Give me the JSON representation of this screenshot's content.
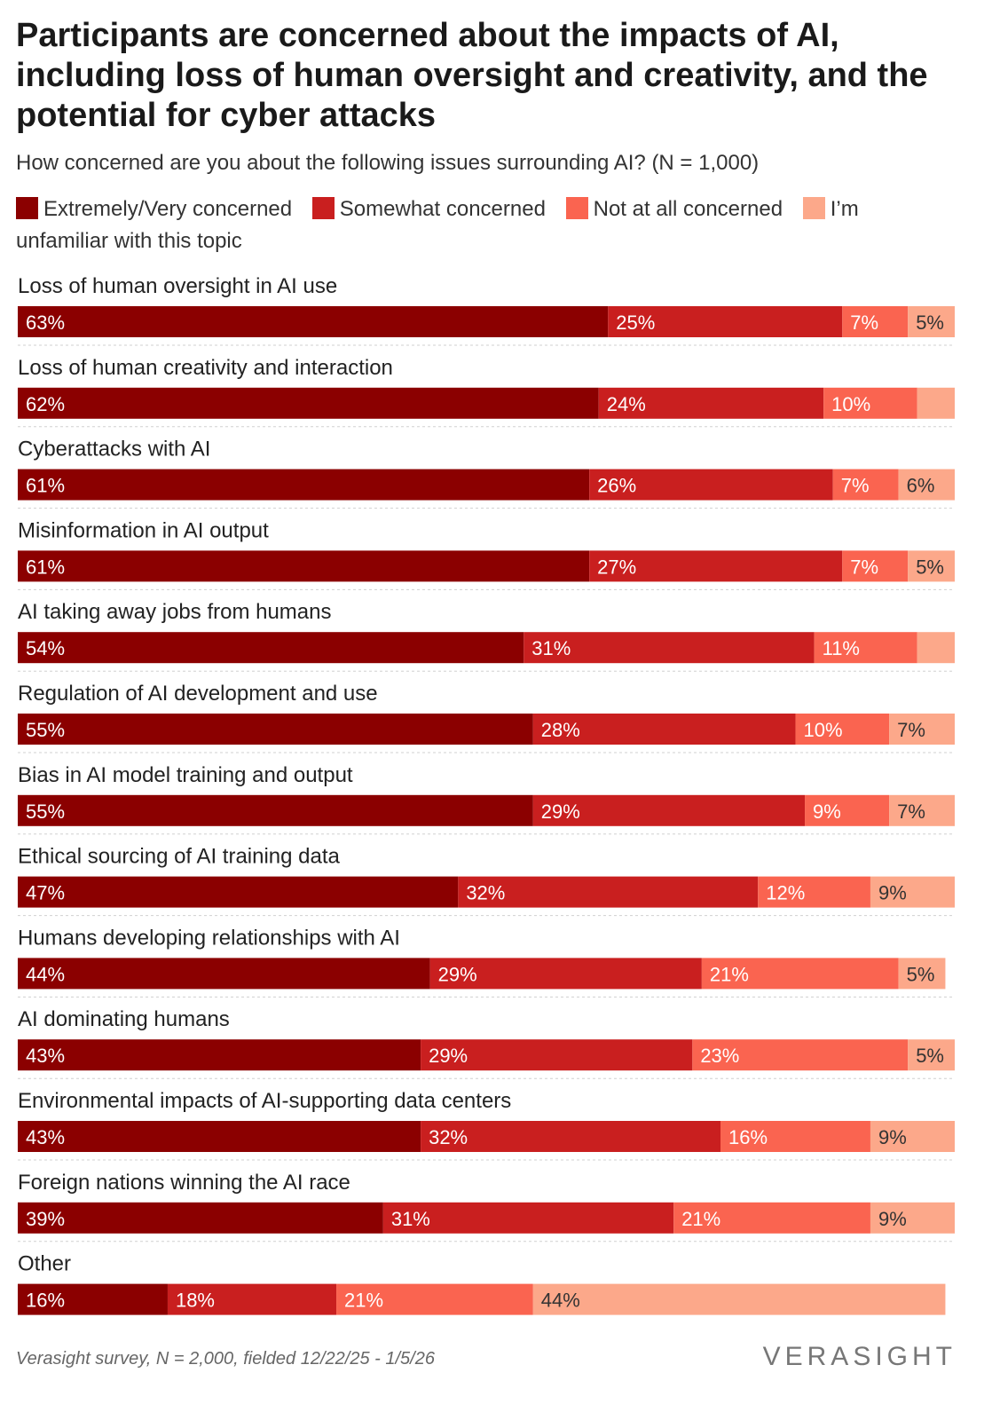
{
  "title": "Participants are concerned about the impacts of AI, including loss of human oversight and creativity, and the potential for cyber attacks",
  "subtitle": "How concerned are you about the following issues surrounding AI? (N = 1,000)",
  "source": "Verasight survey, N = 2,000, fielded 12/22/25 - 1/5/26",
  "brand": "VERASIGHT",
  "colors": {
    "extremely": "#8b0000",
    "somewhat": "#c91f1f",
    "not_at_all": "#fa6450",
    "unfamiliar": "#fca88a",
    "separator": "#d0d0d0"
  },
  "chart_data": {
    "type": "bar",
    "orientation": "horizontal",
    "stacked": true,
    "title": "Participants are concerned about the impacts of AI, including loss of human oversight and creativity, and the potential for cyber attacks",
    "subtitle": "How concerned are you about the following issues surrounding AI? (N = 1,000)",
    "xlim": [
      0,
      100
    ],
    "unit": "%",
    "legend_position": "top",
    "categories": [
      "Loss of human oversight in AI use",
      "Loss of human creativity and interaction",
      "Cyberattacks with AI",
      "Misinformation in AI output",
      "AI taking away jobs from humans",
      "Regulation of AI development and use",
      "Bias in AI model training and output",
      "Ethical sourcing of AI training data",
      "Humans developing relationships with AI",
      "AI dominating humans",
      "Environmental impacts of AI-supporting data centers",
      "Foreign nations winning the AI race",
      "Other"
    ],
    "series": [
      {
        "name": "Extremely/Very concerned",
        "color_key": "extremely",
        "text_color": "#ffffff",
        "values": [
          63,
          62,
          61,
          61,
          54,
          55,
          55,
          47,
          44,
          43,
          43,
          39,
          16
        ],
        "labels": [
          "63%",
          "62%",
          "61%",
          "61%",
          "54%",
          "55%",
          "55%",
          "47%",
          "44%",
          "43%",
          "43%",
          "39%",
          "16%"
        ]
      },
      {
        "name": "Somewhat concerned",
        "color_key": "somewhat",
        "text_color": "#ffffff",
        "values": [
          25,
          24,
          26,
          27,
          31,
          28,
          29,
          32,
          29,
          29,
          32,
          31,
          18
        ],
        "labels": [
          "25%",
          "24%",
          "26%",
          "27%",
          "31%",
          "28%",
          "29%",
          "32%",
          "29%",
          "29%",
          "32%",
          "31%",
          "18%"
        ]
      },
      {
        "name": "Not at all concerned",
        "color_key": "not_at_all",
        "text_color": "#ffffff",
        "values": [
          7,
          10,
          7,
          7,
          11,
          10,
          9,
          12,
          21,
          23,
          16,
          21,
          21
        ],
        "labels": [
          "7%",
          "10%",
          "7%",
          "7%",
          "11%",
          "10%",
          "9%",
          "12%",
          "21%",
          "23%",
          "16%",
          "21%",
          "21%"
        ]
      },
      {
        "name": "I'm unfamiliar with this topic",
        "color_key": "unfamiliar",
        "text_color": "#333333",
        "values": [
          5,
          4,
          6,
          5,
          4,
          7,
          7,
          9,
          5,
          5,
          9,
          9,
          44
        ],
        "labels": [
          "5%",
          "",
          "6%",
          "5%",
          "",
          "7%",
          "7%",
          "9%",
          "5%",
          "5%",
          "9%",
          "9%",
          "44%"
        ]
      }
    ]
  },
  "legend": [
    {
      "label": "Extremely/Very concerned",
      "color_key": "extremely"
    },
    {
      "label": "Somewhat concerned",
      "color_key": "somewhat"
    },
    {
      "label": "Not at all concerned",
      "color_key": "not_at_all"
    },
    {
      "label": "I’m unfamiliar with this topic",
      "color_key": "unfamiliar"
    }
  ]
}
